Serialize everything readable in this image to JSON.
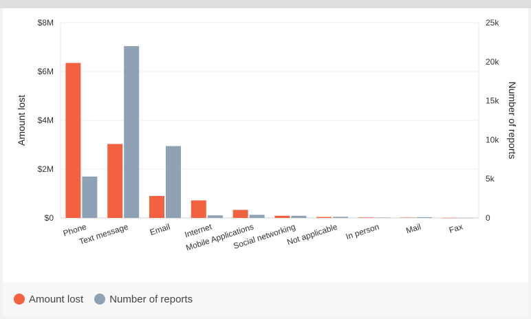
{
  "chart_data": {
    "type": "bar",
    "categories": [
      "Phone",
      "Text message",
      "Email",
      "Internet",
      "Mobile Applications",
      "Social networking",
      "Not applicable",
      "In person",
      "Mail",
      "Fax"
    ],
    "series": [
      {
        "name": "Amount lost",
        "axis": "left",
        "color": "#f26241",
        "values": [
          6350000,
          3030000,
          900000,
          720000,
          330000,
          90000,
          40000,
          20000,
          15000,
          5000
        ]
      },
      {
        "name": "Number of reports",
        "axis": "right",
        "color": "#8fa1b4",
        "values": [
          5300,
          22000,
          9200,
          330,
          400,
          280,
          150,
          50,
          100,
          20
        ]
      }
    ],
    "ylabel_left": "Amount lost",
    "ylabel_right": "Number of reports",
    "ylim_left": [
      0,
      8000000
    ],
    "ylim_right": [
      0,
      25000
    ],
    "left_ticks": [
      {
        "value": 0,
        "label": "$0"
      },
      {
        "value": 2000000,
        "label": "$2M"
      },
      {
        "value": 4000000,
        "label": "$4M"
      },
      {
        "value": 6000000,
        "label": "$6M"
      },
      {
        "value": 8000000,
        "label": "$8M"
      }
    ],
    "right_ticks": [
      {
        "value": 0,
        "label": "0"
      },
      {
        "value": 5000,
        "label": "5k"
      },
      {
        "value": 10000,
        "label": "10k"
      },
      {
        "value": 15000,
        "label": "15k"
      },
      {
        "value": 20000,
        "label": "20k"
      },
      {
        "value": 25000,
        "label": "25k"
      }
    ],
    "legend_position": "bottom-left"
  }
}
